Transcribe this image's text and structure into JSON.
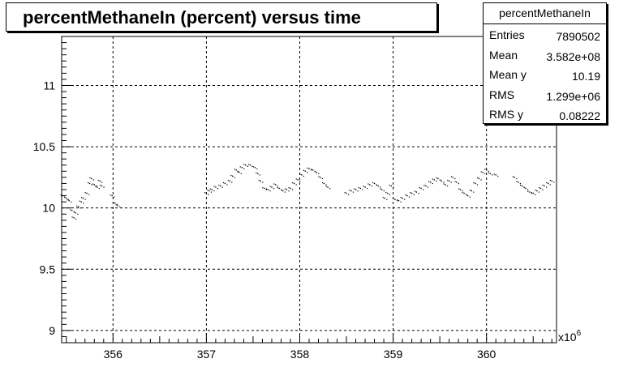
{
  "chart_data": {
    "type": "scatter",
    "title": "percentMethaneIn (percent) versus time",
    "xlabel": "",
    "ylabel": "",
    "x_multiplier": "x10",
    "x_multiplier_exp": "6",
    "xlim": [
      355.45,
      360.75
    ],
    "ylim": [
      8.9,
      11.4
    ],
    "x_ticks": [
      356,
      357,
      358,
      359,
      360
    ],
    "x_tick_labels": [
      "356",
      "357",
      "358",
      "359",
      "360"
    ],
    "y_ticks": [
      9,
      9.5,
      10,
      10.5,
      11
    ],
    "y_tick_labels": [
      "9",
      "9.5",
      "10",
      "10.5",
      "11"
    ],
    "grid": true,
    "legend": "none",
    "marker_color": "#000000",
    "stats": {
      "title": "percentMethaneIn",
      "rows": [
        {
          "key": "Entries",
          "value": "7890502"
        },
        {
          "key": "Mean",
          "value": "3.582e+08"
        },
        {
          "key": "Mean y",
          "value": "10.19"
        },
        {
          "key": "RMS",
          "value": "1.299e+06"
        },
        {
          "key": "RMS y",
          "value": "0.08222"
        }
      ]
    },
    "series": [
      {
        "points": [
          [
            355.46,
            10.1
          ],
          [
            355.5,
            10.08
          ],
          [
            355.53,
            10.06
          ],
          [
            355.56,
            9.98
          ],
          [
            355.58,
            9.92
          ],
          [
            355.6,
            9.96
          ],
          [
            355.63,
            10.01
          ],
          [
            355.66,
            10.05
          ],
          [
            355.68,
            10.08
          ],
          [
            355.72,
            10.12
          ],
          [
            355.75,
            10.2
          ],
          [
            355.77,
            10.24
          ],
          [
            355.8,
            10.19
          ],
          [
            355.83,
            10.17
          ],
          [
            355.86,
            10.22
          ],
          [
            355.88,
            10.18
          ],
          [
            355.99,
            10.1
          ],
          [
            356.02,
            10.04
          ],
          [
            356.05,
            10.02
          ],
          [
            357.0,
            10.12
          ],
          [
            357.03,
            10.14
          ],
          [
            357.06,
            10.15
          ],
          [
            357.1,
            10.17
          ],
          [
            357.15,
            10.18
          ],
          [
            357.2,
            10.2
          ],
          [
            357.25,
            10.22
          ],
          [
            357.28,
            10.26
          ],
          [
            357.32,
            10.31
          ],
          [
            357.35,
            10.29
          ],
          [
            357.38,
            10.33
          ],
          [
            357.42,
            10.35
          ],
          [
            357.47,
            10.35
          ],
          [
            357.52,
            10.33
          ],
          [
            357.55,
            10.28
          ],
          [
            357.58,
            10.22
          ],
          [
            357.62,
            10.16
          ],
          [
            357.66,
            10.15
          ],
          [
            357.7,
            10.17
          ],
          [
            357.74,
            10.19
          ],
          [
            357.78,
            10.16
          ],
          [
            357.82,
            10.14
          ],
          [
            357.86,
            10.15
          ],
          [
            357.9,
            10.16
          ],
          [
            357.94,
            10.2
          ],
          [
            357.98,
            10.23
          ],
          [
            358.02,
            10.27
          ],
          [
            358.06,
            10.3
          ],
          [
            358.1,
            10.32
          ],
          [
            358.14,
            10.31
          ],
          [
            358.18,
            10.29
          ],
          [
            358.22,
            10.25
          ],
          [
            358.26,
            10.2
          ],
          [
            358.3,
            10.17
          ],
          [
            358.5,
            10.12
          ],
          [
            358.55,
            10.14
          ],
          [
            358.6,
            10.15
          ],
          [
            358.65,
            10.16
          ],
          [
            358.7,
            10.17
          ],
          [
            358.75,
            10.19
          ],
          [
            358.8,
            10.2
          ],
          [
            358.84,
            10.18
          ],
          [
            358.88,
            10.15
          ],
          [
            358.91,
            10.08
          ],
          [
            358.94,
            10.12
          ],
          [
            358.98,
            10.18
          ],
          [
            359.02,
            10.07
          ],
          [
            359.06,
            10.06
          ],
          [
            359.1,
            10.08
          ],
          [
            359.15,
            10.1
          ],
          [
            359.2,
            10.12
          ],
          [
            359.25,
            10.13
          ],
          [
            359.3,
            10.16
          ],
          [
            359.35,
            10.18
          ],
          [
            359.4,
            10.21
          ],
          [
            359.44,
            10.23
          ],
          [
            359.48,
            10.24
          ],
          [
            359.52,
            10.22
          ],
          [
            359.56,
            10.19
          ],
          [
            359.6,
            10.22
          ],
          [
            359.64,
            10.25
          ],
          [
            359.68,
            10.21
          ],
          [
            359.72,
            10.15
          ],
          [
            359.76,
            10.12
          ],
          [
            359.8,
            10.1
          ],
          [
            359.84,
            10.14
          ],
          [
            359.88,
            10.2
          ],
          [
            359.92,
            10.24
          ],
          [
            359.96,
            10.29
          ],
          [
            360.0,
            10.31
          ],
          [
            360.04,
            10.28
          ],
          [
            360.1,
            10.27
          ],
          [
            360.3,
            10.25
          ],
          [
            360.34,
            10.21
          ],
          [
            360.38,
            10.18
          ],
          [
            360.42,
            10.16
          ],
          [
            360.46,
            10.13
          ],
          [
            360.5,
            10.12
          ],
          [
            360.54,
            10.14
          ],
          [
            360.58,
            10.16
          ],
          [
            360.62,
            10.18
          ],
          [
            360.66,
            10.2
          ],
          [
            360.7,
            10.22
          ]
        ]
      }
    ]
  }
}
